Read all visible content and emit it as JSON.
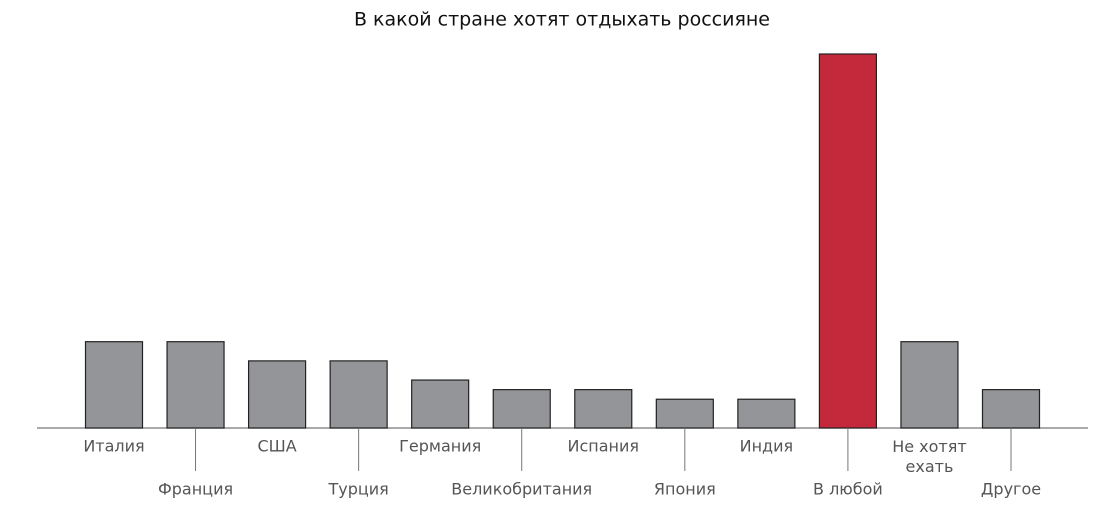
{
  "chart_data": {
    "type": "bar",
    "title": "В какой стране хотят отдыхать россияне",
    "categories": [
      "Италия",
      "Франция",
      "США",
      "Турция",
      "Германия",
      "Великобритания",
      "Испания",
      "Япония",
      "Индия",
      "В любой",
      "Не хотят\nехать",
      "Другое"
    ],
    "values": [
      9,
      9,
      7,
      7,
      5,
      4,
      4,
      3,
      3,
      39,
      9,
      4
    ],
    "colors": [
      "#939598",
      "#939598",
      "#939598",
      "#939598",
      "#939598",
      "#939598",
      "#939598",
      "#939598",
      "#939598",
      "#c4293b",
      "#939598",
      "#939598"
    ]
  }
}
